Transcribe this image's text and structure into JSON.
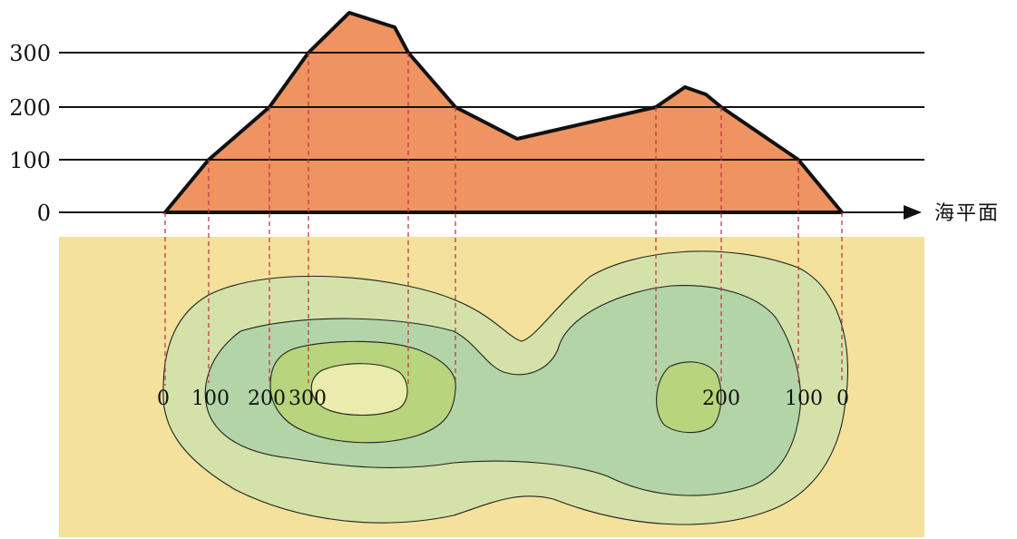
{
  "profile": {
    "y_ticks": [
      "300",
      "200",
      "100",
      "0"
    ],
    "sea_level_label": "海平面"
  },
  "map": {
    "contour_labels": [
      "0",
      "100",
      "200",
      "300",
      "200",
      "100",
      "0"
    ]
  },
  "colors": {
    "mountain_fill": "#ef9361",
    "mountain_outline": "#111111",
    "map_background": "#f3e19c",
    "contour_0_100": "#d4e2a9",
    "contour_100_200": "#b3d4a6",
    "contour_200_300": "#b8d47c",
    "contour_above_300": "#e9ecaa",
    "projection_line": "#c0394b"
  }
}
